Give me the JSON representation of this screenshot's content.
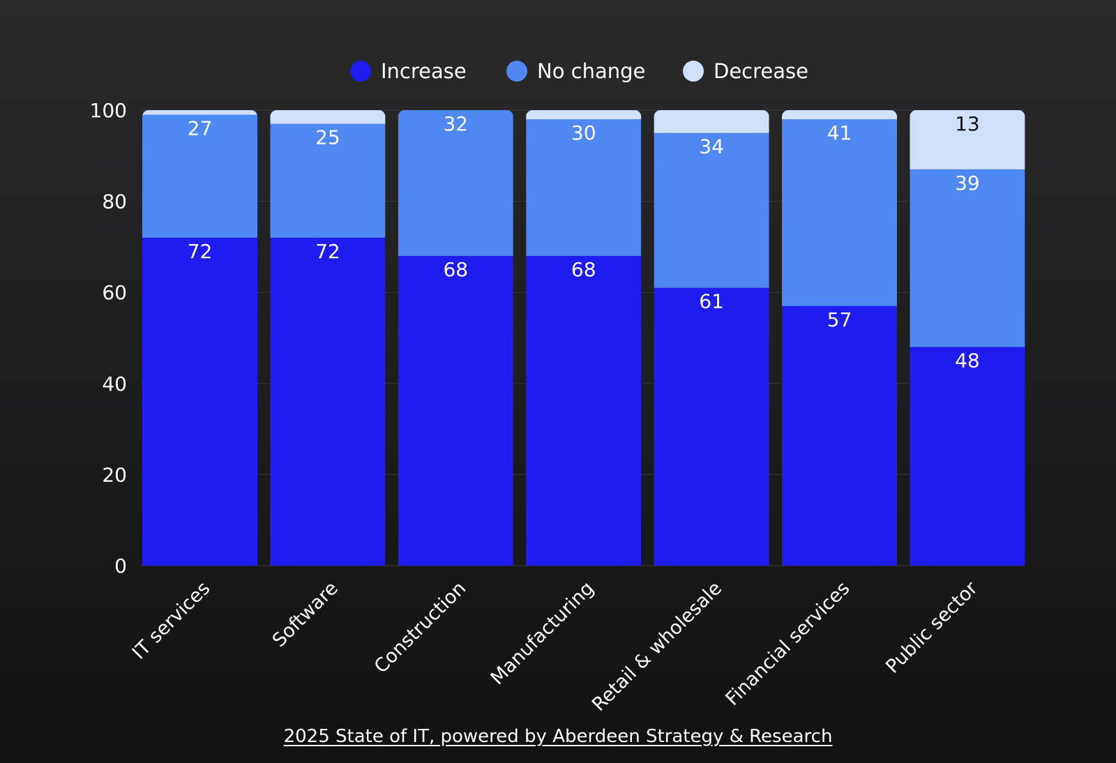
{
  "chart_data": {
    "type": "bar",
    "stacked": true,
    "title": "",
    "xlabel": "",
    "ylabel": "",
    "ylim": [
      0,
      100
    ],
    "yticks": [
      "0",
      "20",
      "40",
      "60",
      "80",
      "100"
    ],
    "legend_position": "top",
    "categories": [
      "IT services",
      "Software",
      "Construction",
      "Manufacturing",
      "Retail & wholesale",
      "Financial services",
      "Public sector"
    ],
    "series": [
      {
        "name": "Increase",
        "color": "#1f1cf0",
        "label_color": "#ffffff",
        "values": [
          72,
          72,
          68,
          68,
          61,
          57,
          48
        ],
        "labels": [
          "72",
          "72",
          "68",
          "68",
          "61",
          "57",
          "48"
        ]
      },
      {
        "name": "No change",
        "color": "#4f88f3",
        "label_color": "#ffffff",
        "values": [
          27,
          25,
          32,
          30,
          34,
          41,
          39
        ],
        "labels": [
          "27",
          "25",
          "32",
          "30",
          "34",
          "41",
          "39"
        ]
      },
      {
        "name": "Decrease",
        "color": "#cfe0fb",
        "label_color": "#111111",
        "values": [
          1,
          3,
          0,
          2,
          5,
          2,
          13
        ],
        "labels": [
          "",
          "",
          "",
          "",
          "",
          "",
          "13"
        ]
      }
    ]
  },
  "source_text": "2025 State of IT, powered by Aberdeen Strategy & Research"
}
